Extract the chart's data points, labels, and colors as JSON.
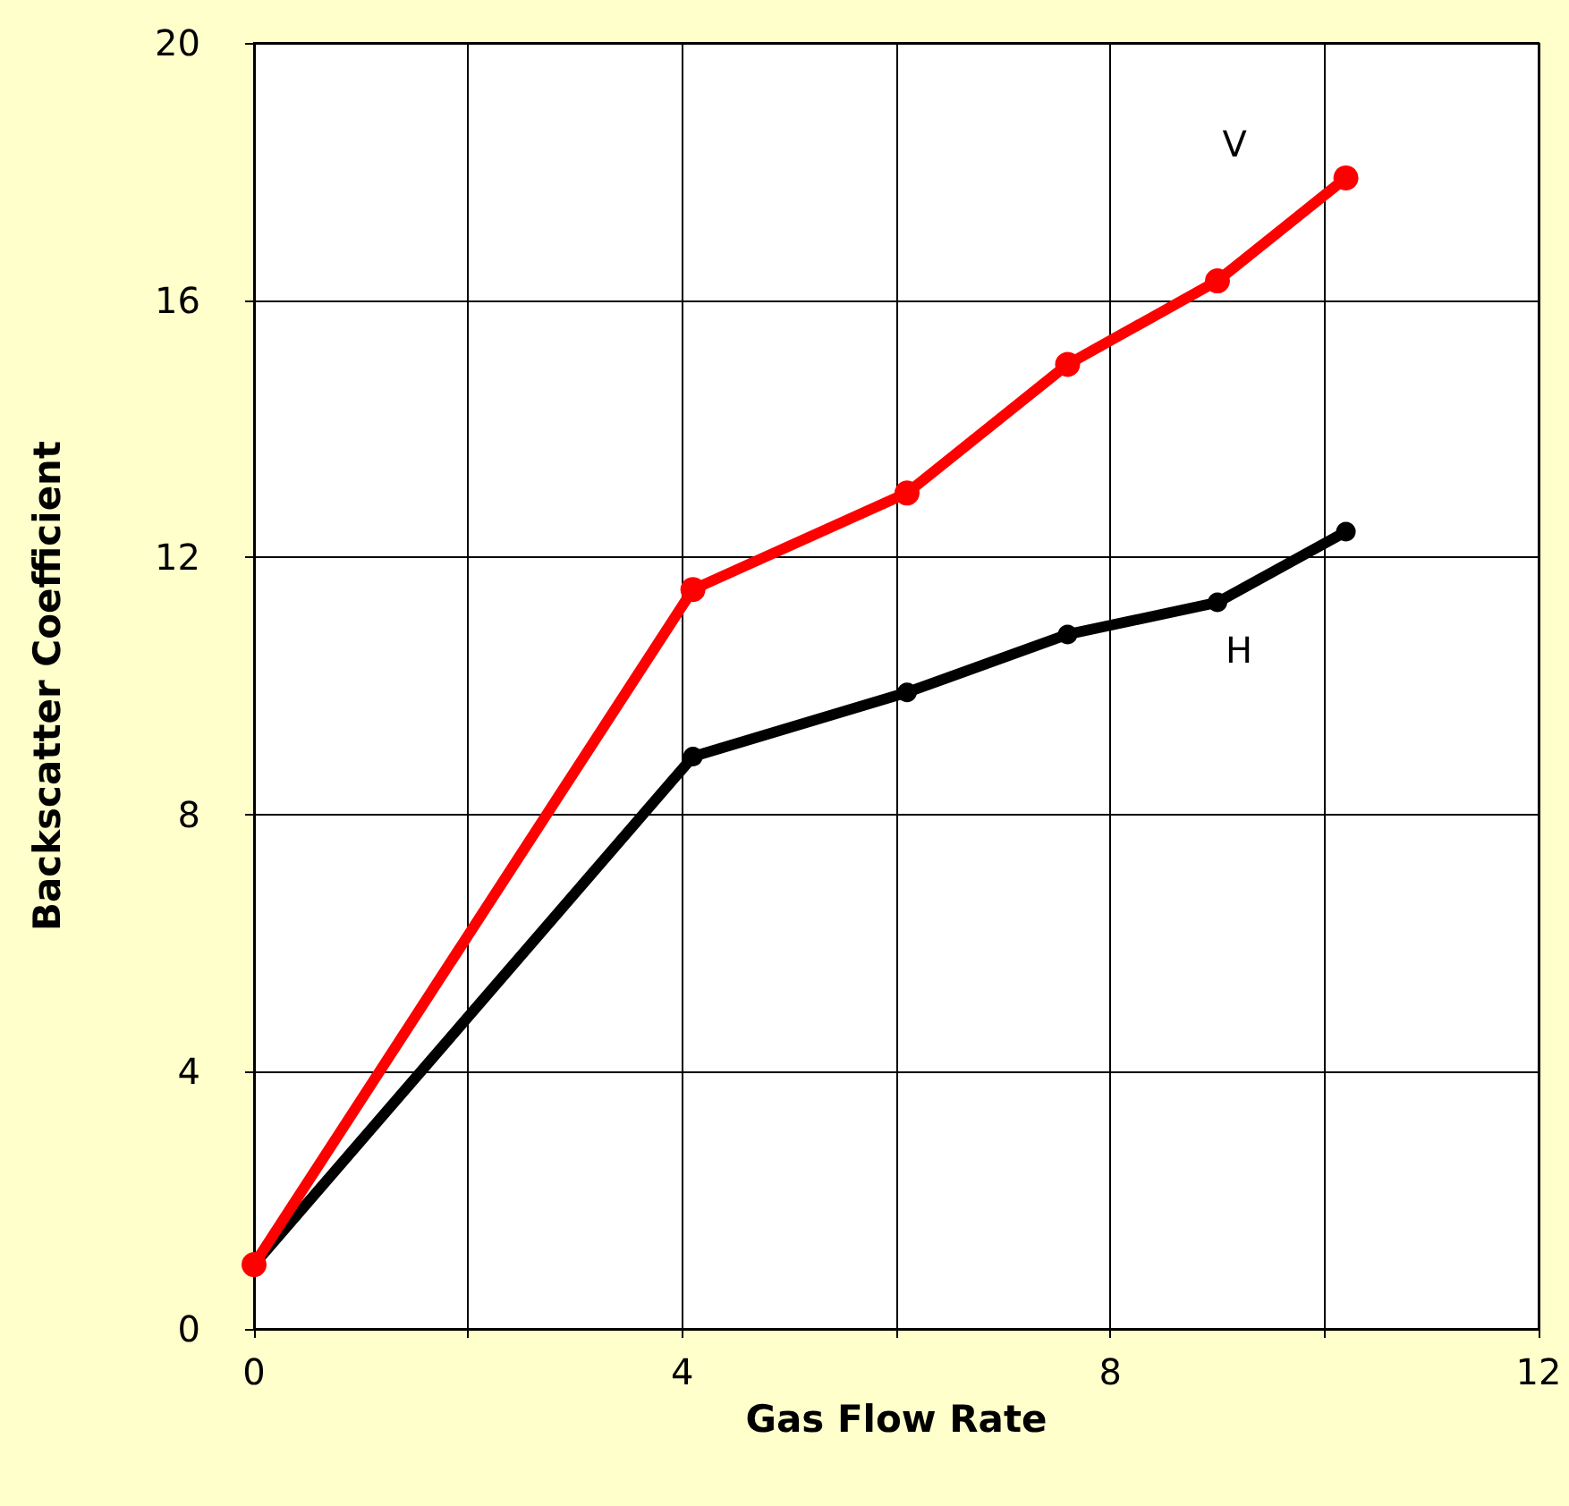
{
  "chart_data": {
    "type": "line",
    "xlabel": "Gas Flow Rate",
    "ylabel": "Backscatter Coefficient",
    "xlim": [
      0,
      12
    ],
    "xticks": [
      0,
      {
        "value": 2,
        "label": null
      },
      4,
      {
        "value": 6,
        "label": null
      },
      8,
      {
        "value": 10,
        "label": null
      },
      12
    ],
    "ylim": [
      0,
      20
    ],
    "yticks": [
      0,
      4,
      8,
      12,
      16,
      20
    ],
    "grid": true,
    "marker": "circle",
    "line_style": "solid",
    "series": [
      {
        "name": "V",
        "color": "#ff0000",
        "x": [
          0,
          4.1,
          6.1,
          7.6,
          9.0,
          10.2
        ],
        "values": [
          1,
          11.5,
          13.0,
          15.0,
          16.3,
          17.9
        ]
      },
      {
        "name": "H",
        "color": "#000000",
        "x": [
          0,
          4.1,
          6.1,
          7.6,
          9.0,
          10.2
        ],
        "values": [
          1,
          8.9,
          9.9,
          10.8,
          11.3,
          12.4
        ]
      }
    ]
  }
}
